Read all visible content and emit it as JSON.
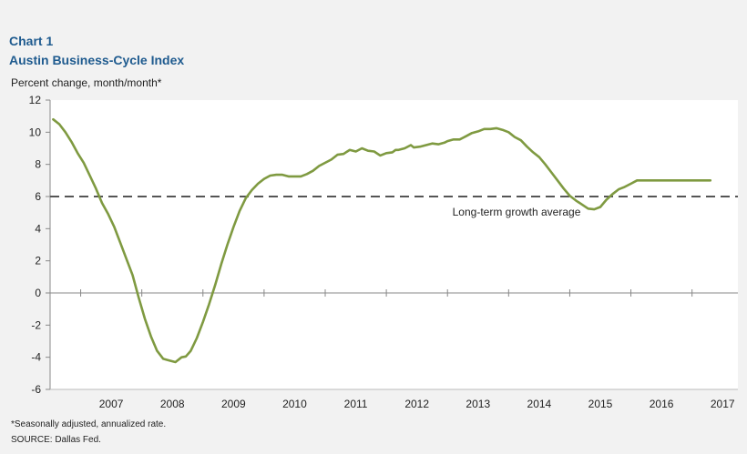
{
  "header": {
    "chart_number": "Chart 1",
    "title": "Austin Business-Cycle Index"
  },
  "footer": {
    "footnote": "*Seasonally adjusted, annualized rate.",
    "source": "SOURCE: Dallas Fed."
  },
  "colors": {
    "title": "#1f5b8f",
    "series": "#7f9a41",
    "reference": "#555555",
    "plot_bg": "#ffffff",
    "page_bg": "#f2f2f2"
  },
  "chart_data": {
    "type": "line",
    "title": "Austin Business-Cycle Index",
    "xlabel": "",
    "ylabel": "Percent change, month/month*",
    "xlim": [
      2006.5,
      2017.75
    ],
    "ylim": [
      -6,
      12
    ],
    "yticks": [
      -6,
      -4,
      -2,
      0,
      2,
      4,
      6,
      8,
      10,
      12
    ],
    "xtick_labels": [
      "2007",
      "2008",
      "2009",
      "2010",
      "2011",
      "2012",
      "2013",
      "2014",
      "2015",
      "2016",
      "2017"
    ],
    "grid": false,
    "series": [
      {
        "name": "Austin Business-Cycle Index",
        "x": [
          2006.55,
          2006.65,
          2006.75,
          2006.85,
          2006.95,
          2007.05,
          2007.15,
          2007.25,
          2007.35,
          2007.45,
          2007.55,
          2007.65,
          2007.75,
          2007.85,
          2007.95,
          2008.05,
          2008.15,
          2008.25,
          2008.35,
          2008.45,
          2008.55,
          2008.65,
          2008.72,
          2008.8,
          2008.9,
          2009.0,
          2009.1,
          2009.2,
          2009.3,
          2009.4,
          2009.5,
          2009.6,
          2009.7,
          2009.8,
          2009.9,
          2010.0,
          2010.1,
          2010.2,
          2010.3,
          2010.4,
          2010.5,
          2010.6,
          2010.7,
          2010.8,
          2010.9,
          2011.0,
          2011.1,
          2011.2,
          2011.3,
          2011.4,
          2011.5,
          2011.6,
          2011.7,
          2011.8,
          2011.9,
          2012.0,
          2012.1,
          2012.15,
          2012.2,
          2012.3,
          2012.4,
          2012.45,
          2012.55,
          2012.65,
          2012.75,
          2012.85,
          2012.95,
          2013.0,
          2013.1,
          2013.2,
          2013.3,
          2013.4,
          2013.5,
          2013.6,
          2013.7,
          2013.8,
          2013.9,
          2014.0,
          2014.1,
          2014.2,
          2014.3,
          2014.4,
          2014.5,
          2014.6,
          2014.7,
          2014.8,
          2014.9,
          2015.0,
          2015.1,
          2015.2,
          2015.3,
          2015.4,
          2015.5,
          2015.6,
          2015.7,
          2015.8,
          2015.9,
          2016.0,
          2016.1,
          2016.2,
          2016.3,
          2016.4,
          2016.5,
          2016.6,
          2016.7,
          2016.8,
          2016.9,
          2017.0,
          2017.1,
          2017.2,
          2017.3
        ],
        "y": [
          10.8,
          10.5,
          10.0,
          9.4,
          8.7,
          8.1,
          7.3,
          6.5,
          5.6,
          4.9,
          4.1,
          3.1,
          2.1,
          1.1,
          -0.3,
          -1.6,
          -2.7,
          -3.6,
          -4.1,
          -4.2,
          -4.3,
          -4.0,
          -3.95,
          -3.6,
          -2.8,
          -1.8,
          -0.7,
          0.5,
          1.8,
          3.0,
          4.1,
          5.1,
          5.9,
          6.4,
          6.8,
          7.1,
          7.3,
          7.35,
          7.35,
          7.25,
          7.25,
          7.25,
          7.4,
          7.6,
          7.9,
          8.1,
          8.3,
          8.6,
          8.65,
          8.9,
          8.8,
          9.0,
          8.85,
          8.8,
          8.55,
          8.7,
          8.75,
          8.9,
          8.9,
          9.0,
          9.2,
          9.05,
          9.1,
          9.2,
          9.3,
          9.25,
          9.35,
          9.45,
          9.55,
          9.55,
          9.75,
          9.95,
          10.05,
          10.2,
          10.2,
          10.25,
          10.15,
          10.0,
          9.7,
          9.5,
          9.1,
          8.75,
          8.45,
          8.0,
          7.5,
          7.0,
          6.5,
          6.05,
          5.75,
          5.5,
          5.25,
          5.2,
          5.35,
          5.8,
          6.15,
          6.45,
          6.6,
          6.8,
          7.0,
          7.0,
          7.0,
          7.0,
          7.0,
          7.0,
          7.0,
          7.0,
          7.0,
          7.0,
          7.0,
          7.0,
          7.0
        ]
      }
    ],
    "reference_line": {
      "name": "Long-term growth average",
      "value": 6.0,
      "label": "Long-term growth average",
      "style": "dashed"
    }
  }
}
